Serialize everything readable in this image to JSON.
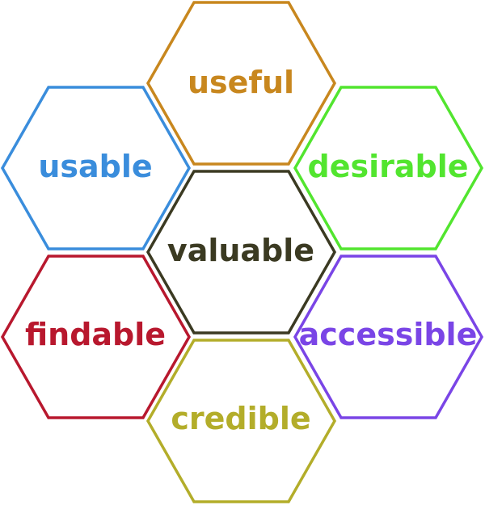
{
  "honeycomb": {
    "useful": {
      "label": "useful",
      "color": "#c8871e"
    },
    "usable": {
      "label": "usable",
      "color": "#3a8ddc"
    },
    "desirable": {
      "label": "desirable",
      "color": "#52e52f"
    },
    "valuable": {
      "label": "valuable",
      "color": "#3b3a22"
    },
    "findable": {
      "label": "findable",
      "color": "#b8182e"
    },
    "accessible": {
      "label": "accessible",
      "color": "#7a45e6"
    },
    "credible": {
      "label": "credible",
      "color": "#b3ad2a"
    }
  }
}
